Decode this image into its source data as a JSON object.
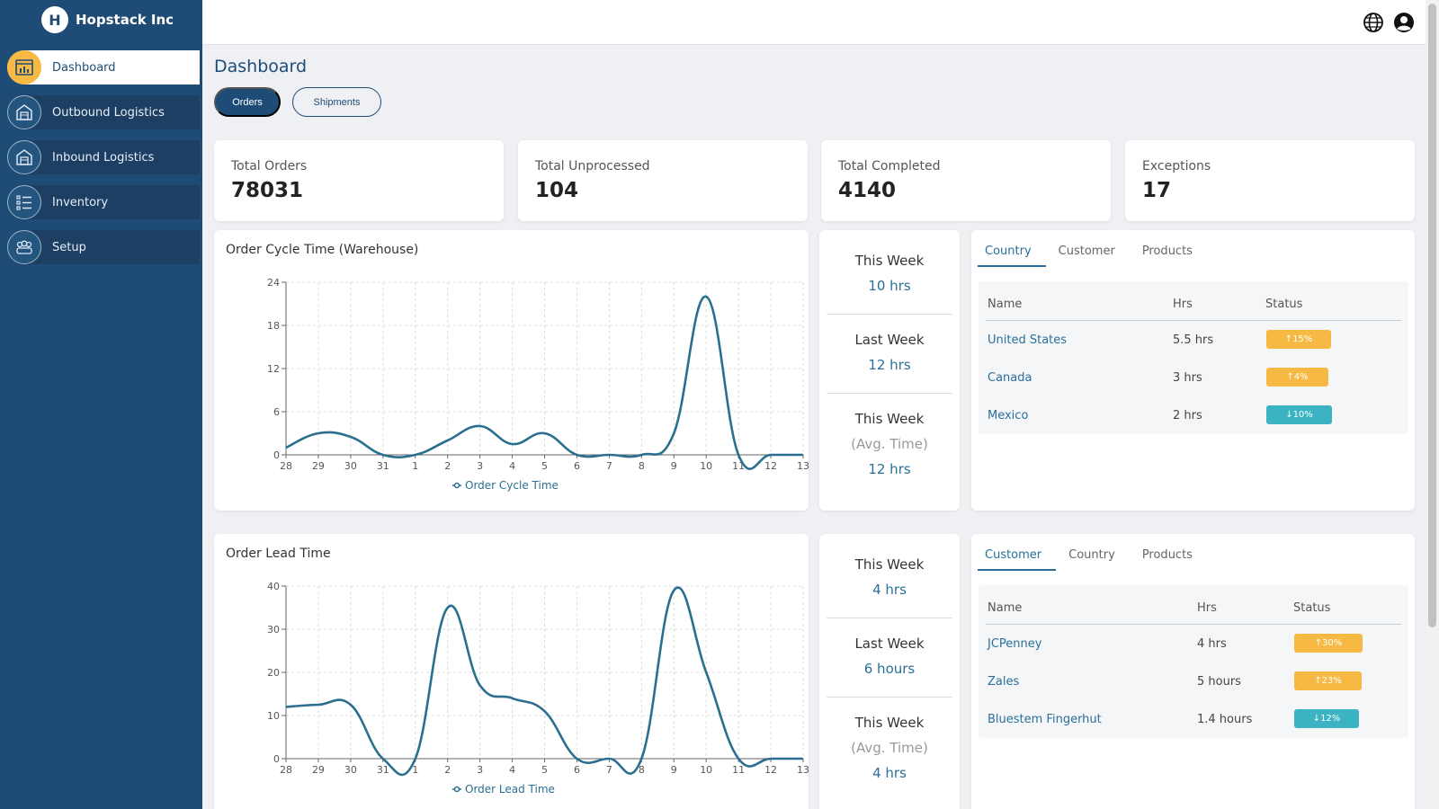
{
  "brand": {
    "name": "Hopstack Inc",
    "logo_letter": "H"
  },
  "sidebar": {
    "items": [
      {
        "label": "Dashboard",
        "icon": "dashboard-icon",
        "active": true
      },
      {
        "label": "Outbound Logistics",
        "icon": "warehouse-icon",
        "active": false
      },
      {
        "label": "Inbound Logistics",
        "icon": "warehouse-icon",
        "active": false
      },
      {
        "label": "Inventory",
        "icon": "checklist-icon",
        "active": false
      },
      {
        "label": "Setup",
        "icon": "team-icon",
        "active": false
      }
    ]
  },
  "header": {
    "icons": [
      "globe-icon",
      "account-icon"
    ]
  },
  "page": {
    "title": "Dashboard",
    "toggles": [
      {
        "label": "Orders",
        "active": true
      },
      {
        "label": "Shipments",
        "active": false
      }
    ]
  },
  "stats": [
    {
      "label": "Total Orders",
      "value": "78031"
    },
    {
      "label": "Total Unprocessed",
      "value": "104"
    },
    {
      "label": "Total Completed",
      "value": "4140"
    },
    {
      "label": "Exceptions",
      "value": "17"
    }
  ],
  "chart_data": [
    {
      "type": "line",
      "title": "Order Cycle Time (Warehouse)",
      "categories": [
        "28",
        "29",
        "30",
        "31",
        "1",
        "2",
        "3",
        "4",
        "5",
        "6",
        "7",
        "8",
        "9",
        "10",
        "11",
        "12",
        "13"
      ],
      "series": [
        {
          "name": "Order Cycle Time",
          "values": [
            1,
            3,
            2.5,
            0,
            0,
            2,
            4,
            1.5,
            3,
            0,
            0,
            0,
            3,
            22,
            0,
            0,
            0
          ]
        }
      ],
      "ylim": [
        0,
        24
      ],
      "yticks": [
        0,
        6,
        12,
        18,
        24
      ],
      "grid": true,
      "legend": "bottom",
      "color": "#2a6f8f"
    },
    {
      "type": "line",
      "title": "Order Lead Time",
      "categories": [
        "28",
        "29",
        "30",
        "31",
        "1",
        "2",
        "3",
        "4",
        "5",
        "6",
        "7",
        "8",
        "9",
        "10",
        "11",
        "12",
        "13"
      ],
      "series": [
        {
          "name": "Order Lead Time",
          "values": [
            12,
            12.5,
            12.5,
            0,
            0,
            35,
            17,
            14,
            11,
            0,
            0,
            0,
            39,
            20,
            0,
            0,
            0
          ]
        }
      ],
      "ylim": [
        0,
        40
      ],
      "yticks": [
        0,
        10,
        20,
        30,
        40
      ],
      "grid": true,
      "legend": "bottom",
      "color": "#2a6f8f"
    }
  ],
  "weekly": [
    {
      "this_week_label": "This Week",
      "this_week_value": "10 hrs",
      "last_week_label": "Last Week",
      "last_week_value": "12 hrs",
      "avg_label": "This Week",
      "avg_sub": "(Avg. Time)",
      "avg_value": "12 hrs"
    },
    {
      "this_week_label": "This Week",
      "this_week_value": "4 hrs",
      "last_week_label": "Last Week",
      "last_week_value": "6 hours",
      "avg_label": "This Week",
      "avg_sub": "(Avg. Time)",
      "avg_value": "4 hrs"
    }
  ],
  "tables": [
    {
      "tabs": [
        "Country",
        "Customer",
        "Products"
      ],
      "active_tab": 0,
      "columns": [
        "Name",
        "Hrs",
        "Status"
      ],
      "rows": [
        {
          "name": "United States",
          "hrs": "5.5 hrs",
          "status": "↑15%",
          "trend": "up"
        },
        {
          "name": "Canada",
          "hrs": "3 hrs",
          "status": "↑4%",
          "trend": "up"
        },
        {
          "name": "Mexico",
          "hrs": "2 hrs",
          "status": "↓10%",
          "trend": "down"
        }
      ]
    },
    {
      "tabs": [
        "Customer",
        "Country",
        "Products"
      ],
      "active_tab": 0,
      "columns": [
        "Name",
        "Hrs",
        "Status"
      ],
      "rows": [
        {
          "name": "JCPenney",
          "hrs": "4 hrs",
          "status": "↑30%",
          "trend": "up"
        },
        {
          "name": "Zales",
          "hrs": "5 hours",
          "status": "↑23%",
          "trend": "up"
        },
        {
          "name": "Bluestem Fingerhut",
          "hrs": "1.4 hours",
          "status": "↓12%",
          "trend": "down"
        }
      ]
    }
  ],
  "colors": {
    "sidebar": "#1f4c76",
    "accent": "#f5b944",
    "up": "#f5b944",
    "down": "#3bb3c3",
    "line": "#2a6f8f"
  }
}
